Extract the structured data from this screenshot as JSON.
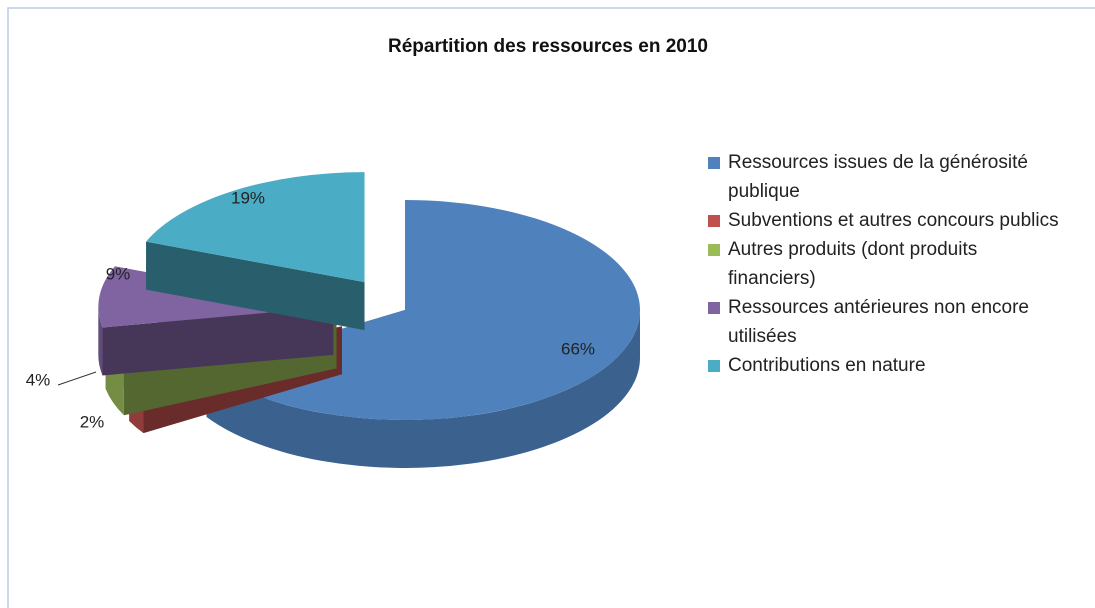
{
  "chart_data": {
    "type": "pie",
    "title": "Répartition des ressources  en 2010",
    "categories": [
      "Ressources issues de la générosité publique",
      "Subventions et autres concours publics",
      "Autres produits (dont produits financiers)",
      "Ressources antérieures non encore utilisées",
      "Contributions en nature"
    ],
    "values": [
      66,
      2,
      4,
      9,
      19
    ],
    "value_labels": [
      "66%",
      "2%",
      "4%",
      "9%",
      "19%"
    ],
    "colors": [
      "#4f81bd",
      "#c0504d",
      "#9bbb59",
      "#8064a2",
      "#4bacc6"
    ],
    "legend": "right"
  }
}
